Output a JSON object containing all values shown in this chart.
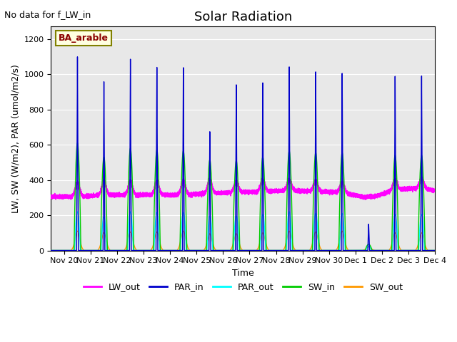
{
  "title": "Solar Radiation",
  "xlabel": "Time",
  "ylabel": "LW, SW (W/m2), PAR (umol/m2/s)",
  "top_left_note": "No data for f_LW_in",
  "legend_label_note": "BA_arable",
  "ylim": [
    0,
    1270
  ],
  "background_color": "#e8e8e8",
  "series": {
    "LW_out": {
      "color": "#ff00ff",
      "lw": 1.0
    },
    "PAR_in": {
      "color": "#0000cc",
      "lw": 1.0
    },
    "PAR_out": {
      "color": "#00ffff",
      "lw": 1.0
    },
    "SW_in": {
      "color": "#00cc00",
      "lw": 1.0
    },
    "SW_out": {
      "color": "#ff9900",
      "lw": 1.0
    }
  },
  "tick_labels": [
    "Nov 20",
    "Nov 21",
    "Nov 22",
    "Nov 23",
    "Nov 24",
    "Nov 25",
    "Nov 26",
    "Nov 27",
    "Nov 28",
    "Nov 29",
    "Nov 30",
    "Dec 1",
    "Dec 2",
    "Dec 3",
    "Dec 4"
  ],
  "gridcolor": "#ffffff",
  "title_fontsize": 13,
  "axis_fontsize": 9,
  "tick_fontsize": 8,
  "legend_fontsize": 9,
  "par_in_peaks": [
    1100,
    960,
    1090,
    1045,
    1045,
    680,
    950,
    960,
    1050,
    1020,
    1010,
    150,
    990,
    990
  ],
  "sw_in_peaks": [
    610,
    530,
    580,
    570,
    565,
    515,
    510,
    530,
    565,
    555,
    555,
    35,
    540,
    540
  ],
  "par_out_peaks": [
    220,
    190,
    220,
    215,
    215,
    195,
    195,
    205,
    220,
    210,
    210,
    25,
    205,
    205
  ],
  "sw_out_peaks": [
    110,
    100,
    105,
    105,
    110,
    95,
    95,
    100,
    110,
    105,
    110,
    20,
    100,
    100
  ],
  "lw_base": [
    305,
    315,
    315,
    315,
    315,
    325,
    330,
    335,
    340,
    335,
    330,
    295,
    345,
    355,
    325
  ],
  "lw_day_bump": [
    80,
    80,
    80,
    75,
    80,
    75,
    60,
    65,
    60,
    60,
    55,
    10,
    55,
    55
  ]
}
